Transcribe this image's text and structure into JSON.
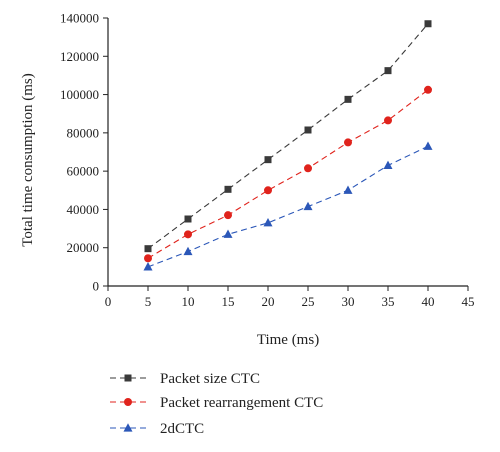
{
  "chart_data": {
    "type": "line",
    "title": "",
    "xlabel": "Time (ms)",
    "ylabel": "Total time consumption (ms)",
    "xlim": [
      0,
      45
    ],
    "ylim": [
      0,
      140000
    ],
    "xticks": [
      0,
      5,
      10,
      15,
      20,
      25,
      30,
      35,
      40,
      45
    ],
    "yticks": [
      0,
      20000,
      40000,
      60000,
      80000,
      100000,
      120000,
      140000
    ],
    "grid": false,
    "legend_placement": "below",
    "x": [
      5,
      10,
      15,
      20,
      25,
      30,
      35,
      40
    ],
    "series": [
      {
        "name": "Packet size CTC",
        "values": [
          19500,
          35000,
          50500,
          66000,
          81500,
          97500,
          112500,
          137000
        ],
        "color": "#3a3a3a",
        "marker": "square",
        "line": "dashed"
      },
      {
        "name": "Packet rearrangement CTC",
        "values": [
          14500,
          27000,
          37000,
          50000,
          61500,
          75000,
          86500,
          102500
        ],
        "color": "#e0231c",
        "marker": "circle",
        "line": "dashed"
      },
      {
        "name": "2dCTC",
        "values": [
          10000,
          18000,
          27000,
          33000,
          41500,
          50000,
          63000,
          73000
        ],
        "color": "#2b57b8",
        "marker": "triangle",
        "line": "dashed"
      }
    ]
  }
}
